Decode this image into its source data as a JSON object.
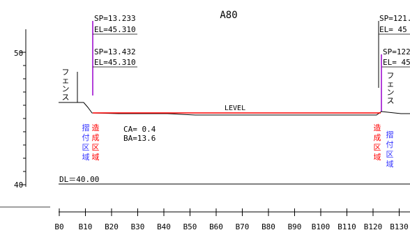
{
  "section_title": "A80",
  "left_marker": {
    "top": {
      "sp": "SP=13.233",
      "el": "EL=45.310"
    },
    "bottom": {
      "sp": "SP=13.432",
      "el": "EL=45.310"
    }
  },
  "right_marker": {
    "top": {
      "sp": "SP=121.",
      "el": "EL= 45"
    },
    "bottom": {
      "sp": "SP=122",
      "el": "EL= 45"
    }
  },
  "fence_label": [
    "フ",
    "ェ",
    "ン",
    "ス"
  ],
  "level_label": "LEVEL",
  "ca_label": "CA= 0.4",
  "ba_label": "BA=13.6",
  "zone_blue_chars": [
    "摺",
    "付",
    "区",
    "域"
  ],
  "zone_red_chars": [
    "造",
    "成",
    "区",
    "域"
  ],
  "dl_label": "DL＝40.00",
  "y_axis": {
    "ticks": [
      "50",
      "40"
    ]
  },
  "x_axis": {
    "ticks": [
      "B0",
      "B10",
      "B20",
      "B30",
      "B40",
      "B50",
      "B60",
      "B70",
      "B80",
      "B90",
      "B100",
      "B110",
      "B120",
      "B130"
    ]
  },
  "colors": {
    "line": "#000000",
    "level": "#ff0000",
    "blue": "#3333ff",
    "red": "#ff0000",
    "purple": "#9900cc"
  }
}
